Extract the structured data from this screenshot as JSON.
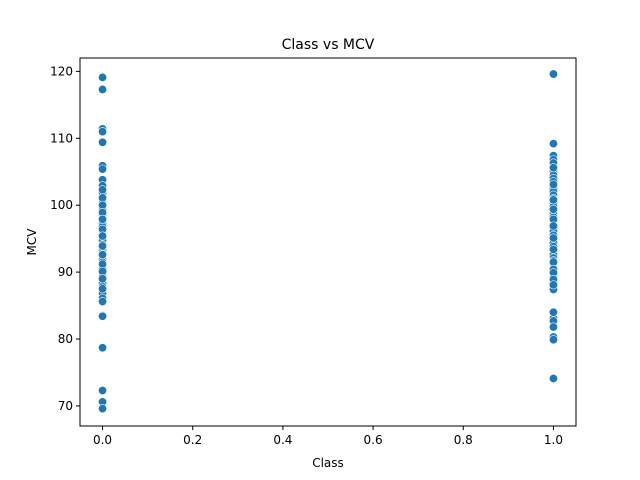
{
  "chart_data": {
    "type": "scatter",
    "title": "Class vs MCV",
    "xlabel": "Class",
    "ylabel": "MCV",
    "xlim": [
      -0.05,
      1.05
    ],
    "ylim": [
      67,
      122
    ],
    "xticks": [
      0.0,
      0.2,
      0.4,
      0.6,
      0.8,
      1.0
    ],
    "xtick_labels": [
      "0.0",
      "0.2",
      "0.4",
      "0.6",
      "0.8",
      "1.0"
    ],
    "yticks": [
      70,
      80,
      90,
      100,
      110,
      120
    ],
    "ytick_labels": [
      "70",
      "80",
      "90",
      "100",
      "110",
      "120"
    ],
    "grid": false,
    "marker_color": "#1f77b4",
    "series": [
      {
        "x": [
          0,
          0,
          0,
          0,
          0,
          0,
          0,
          0,
          0,
          0,
          0,
          0,
          0,
          0,
          0,
          0,
          0,
          0,
          0,
          0,
          0,
          0,
          0,
          0,
          0,
          0,
          0,
          0,
          0,
          0,
          0,
          0,
          0,
          0,
          0,
          0,
          0,
          0,
          0,
          0,
          0,
          0,
          0,
          0,
          0,
          0,
          0,
          0,
          0,
          0,
          0,
          0,
          0,
          0,
          0,
          0,
          0,
          0,
          0
        ],
        "y": [
          119.1,
          117.3,
          111.4,
          111.0,
          109.4,
          105.9,
          105.4,
          103.8,
          102.9,
          101.8,
          100.3,
          99.7,
          99.3,
          98.6,
          98.0,
          97.6,
          97.2,
          96.8,
          96.1,
          95.6,
          95.2,
          94.7,
          94.1,
          93.6,
          93.2,
          92.8,
          92.4,
          91.9,
          91.5,
          91.0,
          90.4,
          89.9,
          89.3,
          88.8,
          88.3,
          87.8,
          87.4,
          86.8,
          86.1,
          85.6,
          83.5,
          83.4,
          78.7,
          72.3,
          70.6,
          69.6,
          102.3,
          101.1,
          100.0,
          98.9,
          97.9,
          96.4,
          95.4,
          93.9,
          92.6,
          91.2,
          90.1,
          89.0,
          87.5
        ]
      },
      {
        "x": [
          1,
          1,
          1,
          1,
          1,
          1,
          1,
          1,
          1,
          1,
          1,
          1,
          1,
          1,
          1,
          1,
          1,
          1,
          1,
          1,
          1,
          1,
          1,
          1,
          1,
          1,
          1,
          1,
          1,
          1,
          1,
          1,
          1,
          1,
          1,
          1,
          1,
          1,
          1,
          1,
          1,
          1,
          1,
          1,
          1,
          1,
          1,
          1,
          1,
          1,
          1,
          1,
          1,
          1,
          1,
          1,
          1,
          1,
          1
        ],
        "y": [
          119.6,
          109.2,
          107.4,
          106.8,
          106.3,
          105.0,
          104.5,
          104.0,
          103.5,
          102.5,
          102.0,
          101.5,
          101.0,
          100.4,
          99.8,
          99.2,
          98.7,
          98.2,
          97.6,
          97.1,
          96.6,
          96.1,
          95.5,
          94.9,
          94.4,
          93.8,
          93.2,
          92.6,
          92.1,
          91.7,
          91.2,
          90.6,
          90.1,
          89.7,
          89.2,
          88.4,
          87.9,
          87.4,
          83.9,
          83.1,
          82.7,
          81.8,
          80.3,
          79.9,
          74.1,
          105.6,
          103.1,
          100.8,
          99.4,
          97.9,
          96.9,
          95.1,
          93.4,
          91.5,
          90.4,
          89.9,
          88.9,
          88.1,
          84.0
        ]
      }
    ]
  }
}
